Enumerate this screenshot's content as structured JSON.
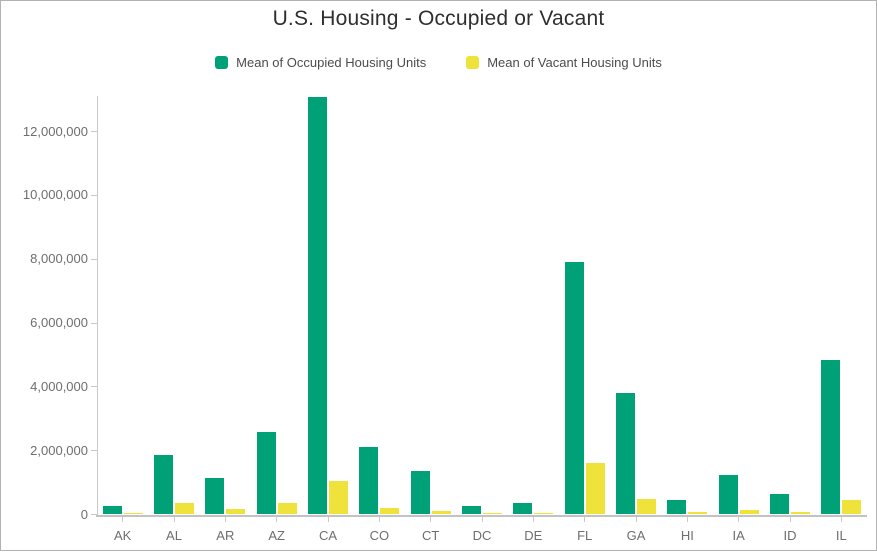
{
  "title": "U.S. Housing - Occupied or Vacant",
  "legend": {
    "items": [
      {
        "label": "Mean of Occupied Housing Units",
        "color": "#00a176"
      },
      {
        "label": "Mean of Vacant Housing Units",
        "color": "#eee23b"
      }
    ]
  },
  "chart_data": {
    "type": "bar",
    "title": "U.S. Housing - Occupied or Vacant",
    "categories": [
      "AK",
      "AL",
      "AR",
      "AZ",
      "CA",
      "CO",
      "CT",
      "DC",
      "DE",
      "FL",
      "GA",
      "HI",
      "IA",
      "ID",
      "IL"
    ],
    "series": [
      {
        "name": "Mean of Occupied Housing Units",
        "color": "#00a176",
        "values": [
          280000,
          1860000,
          1130000,
          2590000,
          13080000,
          2100000,
          1360000,
          265000,
          350000,
          7910000,
          3810000,
          440000,
          1250000,
          640000,
          4840000
        ]
      },
      {
        "name": "Mean of Vacant Housing Units",
        "color": "#eee23b",
        "values": [
          55000,
          360000,
          175000,
          370000,
          1060000,
          190000,
          120000,
          38000,
          62000,
          1600000,
          470000,
          72000,
          130000,
          78000,
          450000
        ]
      }
    ],
    "xlabel": "",
    "ylabel": "",
    "ylim": [
      0,
      13100000
    ],
    "yticks": [
      0,
      2000000,
      4000000,
      6000000,
      8000000,
      10000000,
      12000000
    ],
    "ytick_labels": [
      "0",
      "2,000,000",
      "4,000,000",
      "6,000,000",
      "8,000,000",
      "10,000,000",
      "12,000,000"
    ],
    "grid": false,
    "legend_position": "top"
  }
}
